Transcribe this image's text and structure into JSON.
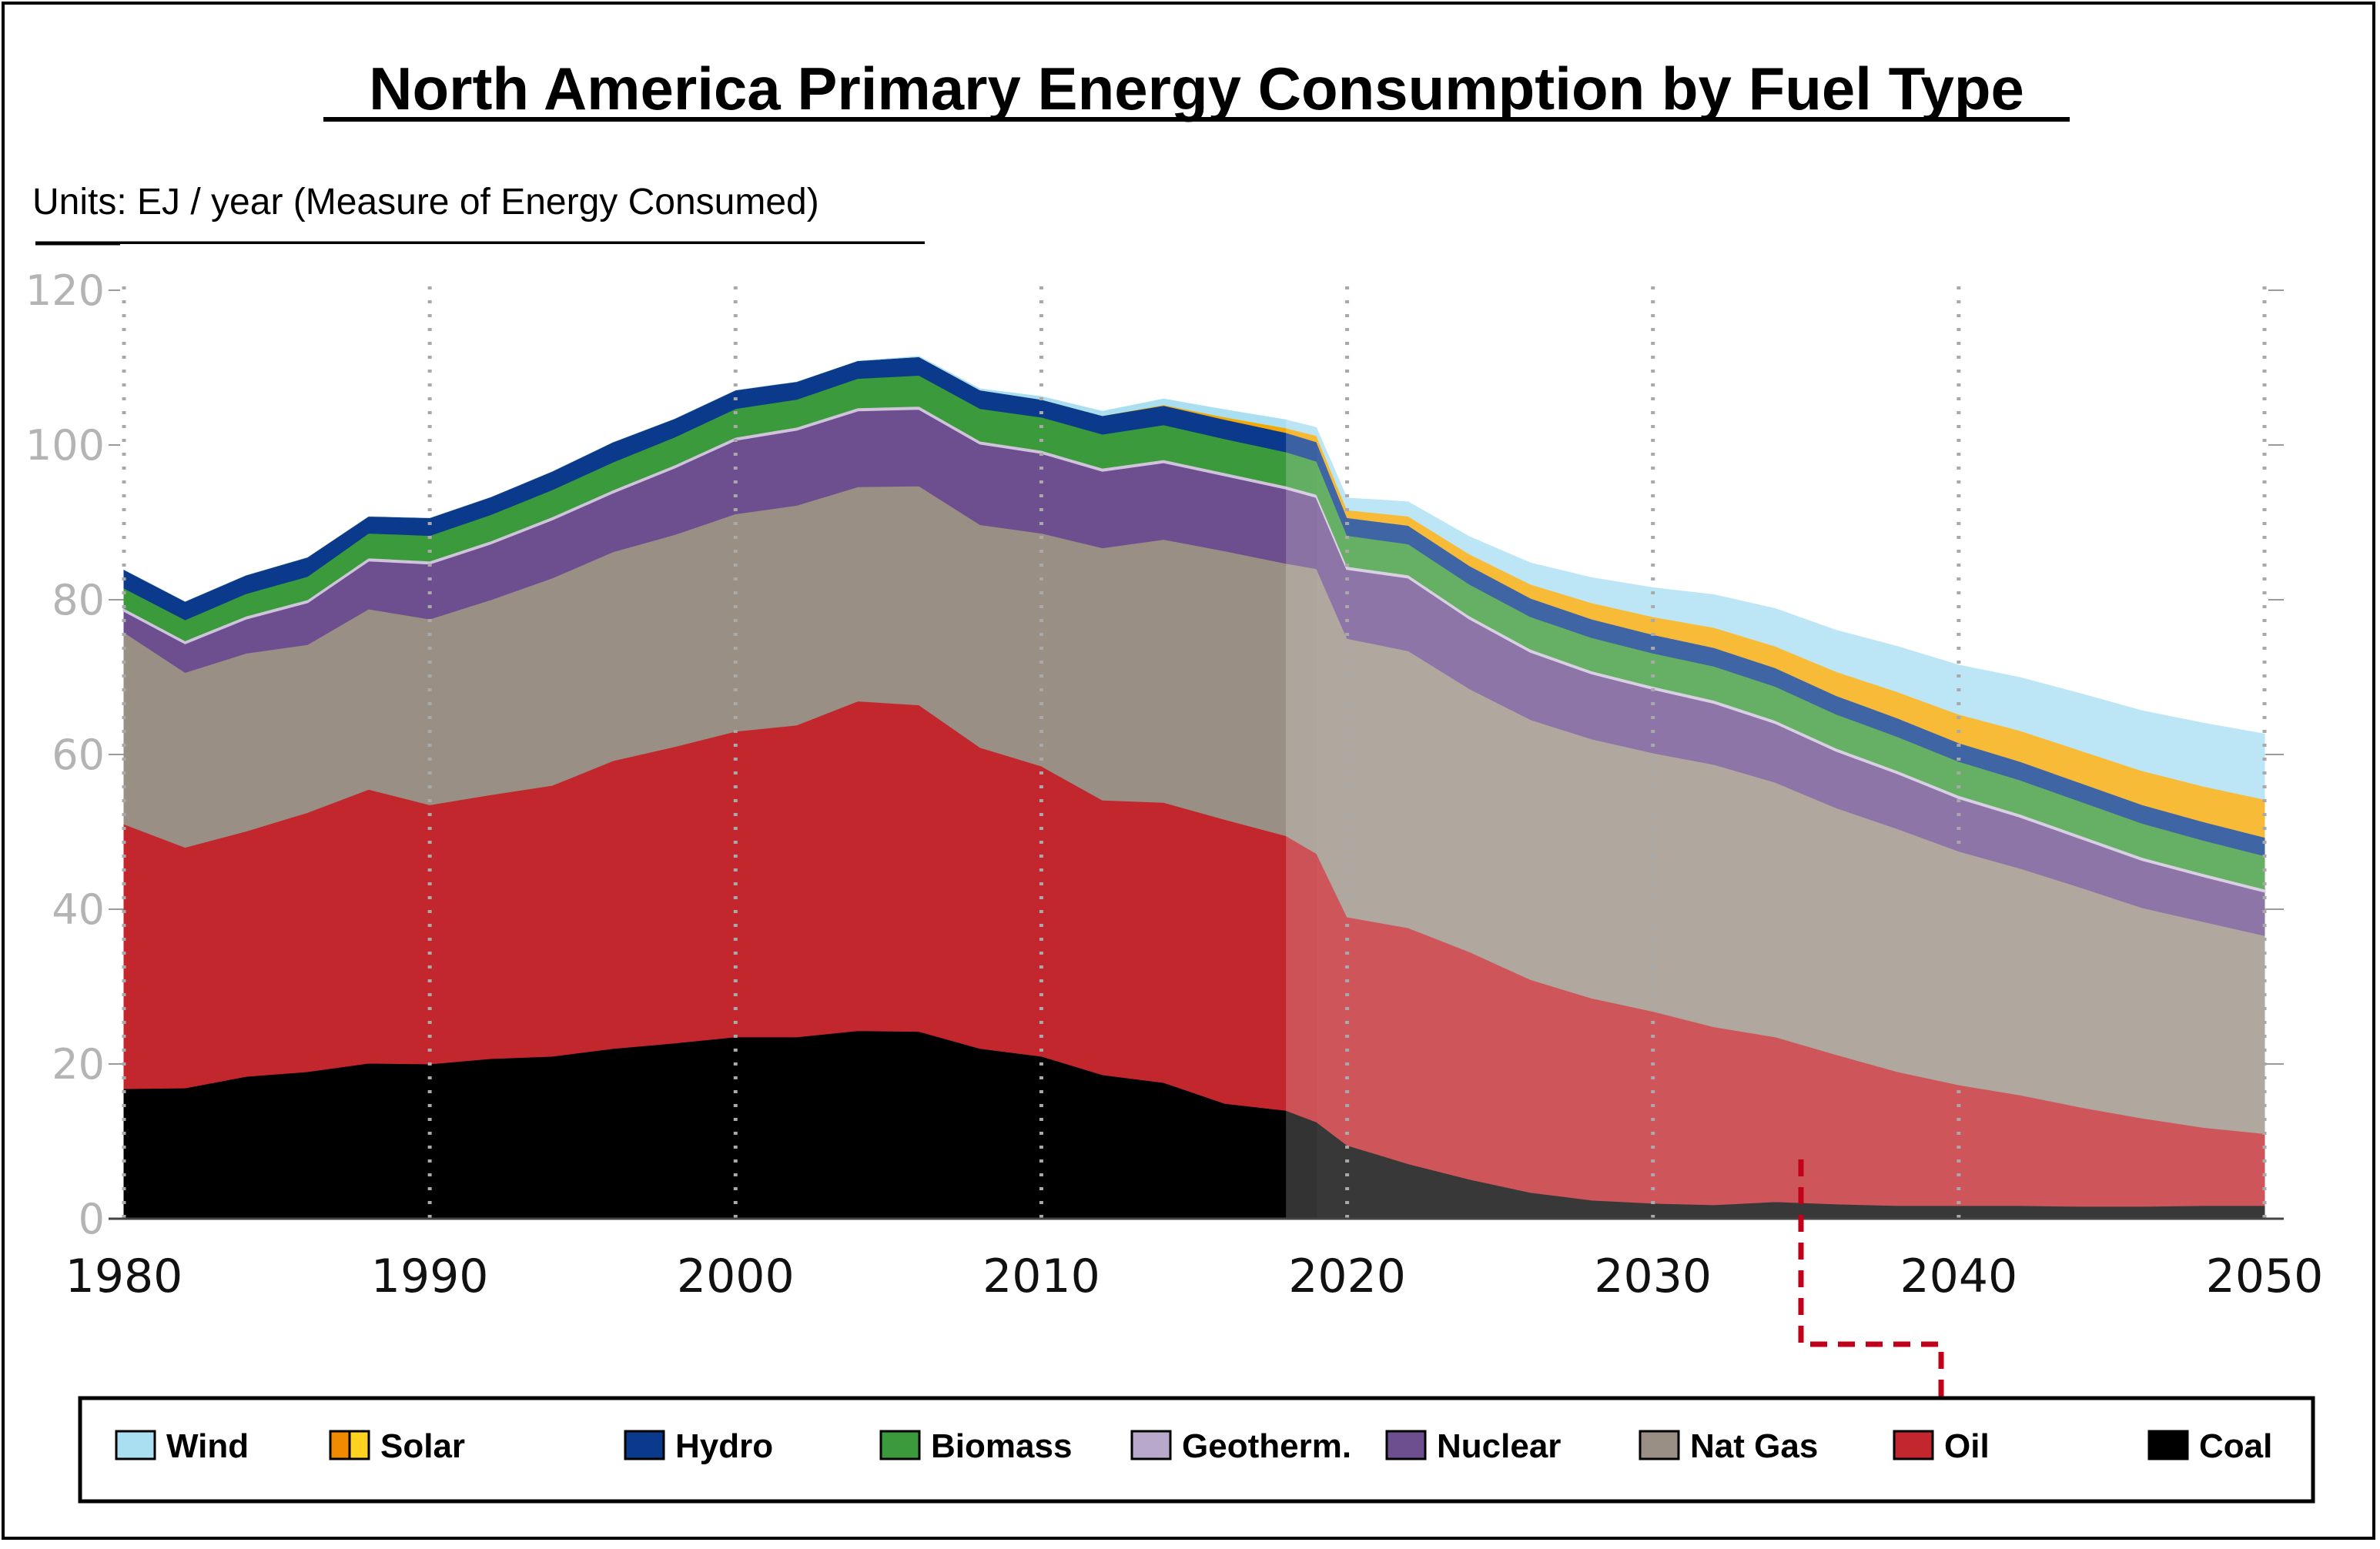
{
  "title": "North America Primary Energy Consumption by Fuel Type",
  "units": "Units: EJ / year (Measure of Energy Consumed)",
  "colors": {
    "Coal": "#000000",
    "Oil": "#c1272d",
    "Nat Gas": "#9a8f84",
    "Nuclear": "#6d4f8f",
    "Geotherm.": "#b8a8cc",
    "Biomass": "#3b9a3b",
    "Hydro": "#0b3a8c",
    "Solar": "#f5a800",
    "Wind": "#aadff2"
  },
  "highlight": "Oil",
  "chart_data": {
    "type": "area",
    "stacked": true,
    "title": "North America Primary Energy Consumption by Fuel Type",
    "ylabel": "Units: EJ / year (Measure of Energy Consumed)",
    "xlim": [
      1980,
      2050
    ],
    "ylim": [
      0,
      120
    ],
    "xticks": [
      1980,
      1990,
      2000,
      2010,
      2020,
      2030,
      2040,
      2050
    ],
    "yticks": [
      0,
      20,
      40,
      60,
      80,
      100,
      120
    ],
    "history_end": 2018,
    "x": [
      1980,
      1982,
      1984,
      1986,
      1988,
      1990,
      1992,
      1994,
      1996,
      1998,
      2000,
      2002,
      2004,
      2006,
      2008,
      2010,
      2012,
      2014,
      2016,
      2018,
      2019,
      2020,
      2022,
      2024,
      2026,
      2028,
      2030,
      2032,
      2034,
      2036,
      2038,
      2040,
      2042,
      2044,
      2046,
      2048,
      2050
    ],
    "series": [
      {
        "name": "Coal",
        "values": [
          16.8,
          16.9,
          18.4,
          19.0,
          20.1,
          20.0,
          20.7,
          21.0,
          22.0,
          22.7,
          23.5,
          23.5,
          24.3,
          24.2,
          22.0,
          21.0,
          18.6,
          17.6,
          14.9,
          14.0,
          12.5,
          9.5,
          7.1,
          5.1,
          3.4,
          2.4,
          2.0,
          1.8,
          2.2,
          1.9,
          1.7,
          1.7,
          1.7,
          1.6,
          1.6,
          1.7,
          1.7
        ]
      },
      {
        "name": "Oil",
        "values": [
          34.2,
          31.1,
          31.7,
          33.5,
          35.4,
          33.5,
          34.1,
          35.0,
          37.2,
          38.3,
          39.5,
          40.3,
          42.6,
          42.2,
          38.9,
          37.5,
          35.5,
          36.2,
          36.7,
          35.5,
          34.7,
          29.5,
          30.5,
          29.4,
          27.5,
          26.1,
          24.8,
          23.0,
          21.3,
          19.3,
          17.3,
          15.6,
          14.3,
          12.8,
          11.4,
          10.1,
          9.3
        ]
      },
      {
        "name": "Nat Gas",
        "values": [
          24.8,
          22.6,
          23.0,
          21.7,
          23.3,
          24.0,
          25.2,
          26.8,
          27.0,
          27.4,
          28.1,
          28.4,
          27.7,
          28.3,
          28.8,
          30.1,
          32.6,
          34.0,
          34.7,
          35.2,
          36.8,
          36.0,
          35.8,
          34.0,
          33.6,
          33.5,
          33.4,
          33.9,
          32.9,
          31.9,
          31.4,
          30.2,
          29.3,
          28.4,
          27.2,
          26.6,
          25.6
        ]
      },
      {
        "name": "Nuclear",
        "values": [
          2.8,
          3.8,
          4.5,
          5.5,
          6.3,
          7.2,
          7.3,
          7.6,
          7.7,
          8.7,
          9.6,
          9.8,
          9.9,
          10.0,
          10.5,
          10.4,
          10.0,
          10.0,
          9.8,
          9.7,
          9.3,
          9.0,
          9.5,
          9.1,
          8.8,
          8.5,
          8.3,
          8.0,
          7.7,
          7.4,
          7.2,
          6.9,
          6.7,
          6.4,
          6.2,
          5.9,
          5.7
        ]
      },
      {
        "name": "Geotherm.",
        "values": [
          0.3,
          0.3,
          0.3,
          0.3,
          0.3,
          0.3,
          0.3,
          0.3,
          0.3,
          0.3,
          0.3,
          0.3,
          0.3,
          0.3,
          0.3,
          0.3,
          0.3,
          0.3,
          0.3,
          0.3,
          0.3,
          0.3,
          0.3,
          0.3,
          0.3,
          0.3,
          0.3,
          0.3,
          0.3,
          0.3,
          0.3,
          0.3,
          0.3,
          0.3,
          0.3,
          0.3,
          0.3
        ]
      },
      {
        "name": "Biomass",
        "values": [
          2.6,
          2.7,
          2.9,
          3.0,
          3.2,
          3.3,
          3.4,
          3.5,
          3.6,
          3.6,
          3.7,
          3.6,
          3.8,
          4.0,
          4.2,
          4.3,
          4.4,
          4.5,
          4.4,
          4.4,
          4.3,
          4.0,
          4.0,
          4.1,
          4.2,
          4.3,
          4.3,
          4.4,
          4.4,
          4.4,
          4.4,
          4.4,
          4.4,
          4.4,
          4.4,
          4.3,
          4.3
        ]
      },
      {
        "name": "Hydro",
        "values": [
          2.4,
          2.4,
          2.4,
          2.5,
          2.2,
          2.3,
          2.3,
          2.4,
          2.6,
          2.4,
          2.4,
          2.3,
          2.3,
          2.4,
          2.4,
          2.3,
          2.4,
          2.5,
          2.5,
          2.5,
          2.5,
          2.3,
          2.4,
          2.4,
          2.4,
          2.4,
          2.4,
          2.4,
          2.4,
          2.4,
          2.4,
          2.4,
          2.4,
          2.4,
          2.4,
          2.4,
          2.4
        ]
      },
      {
        "name": "Solar",
        "values": [
          0,
          0,
          0,
          0,
          0,
          0,
          0,
          0,
          0,
          0,
          0,
          0,
          0,
          0,
          0,
          0,
          0,
          0.1,
          0.3,
          0.6,
          0.8,
          1.0,
          1.2,
          1.5,
          1.8,
          2.1,
          2.3,
          2.6,
          2.8,
          3.1,
          3.4,
          3.7,
          4.0,
          4.2,
          4.4,
          4.6,
          4.9
        ]
      },
      {
        "name": "Wind",
        "values": [
          0,
          0,
          0,
          0,
          0,
          0,
          0,
          0,
          0,
          0,
          0,
          0,
          0,
          0.1,
          0.2,
          0.4,
          0.6,
          0.8,
          1.0,
          1.1,
          1.1,
          1.6,
          1.9,
          2.3,
          2.8,
          3.3,
          3.8,
          4.3,
          4.9,
          5.4,
          5.9,
          6.4,
          6.9,
          7.4,
          7.8,
          8.2,
          8.5
        ]
      }
    ],
    "legend": [
      "Wind",
      "Solar",
      "Hydro",
      "Biomass",
      "Geotherm.",
      "Nuclear",
      "Nat Gas",
      "Oil",
      "Coal"
    ],
    "legend_position": "bottom"
  }
}
